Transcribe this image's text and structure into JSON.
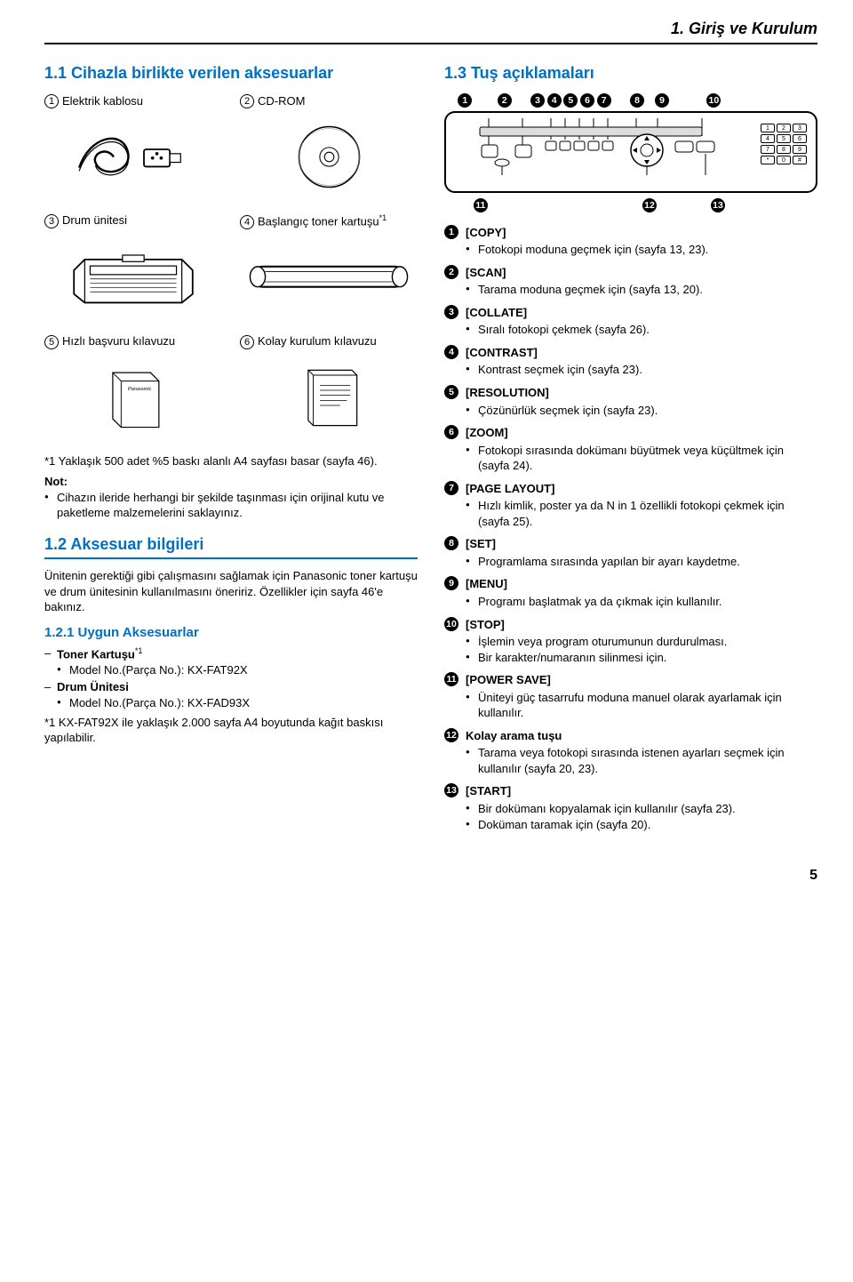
{
  "chapter_header": "1. Giriş ve Kurulum",
  "left": {
    "s1_title": "1.1 Cihazla birlikte verilen aksesuarlar",
    "items": {
      "i1_num": "1",
      "i1": "Elektrik kablosu",
      "i2_num": "2",
      "i2": "CD-ROM",
      "i3_num": "3",
      "i3": "Drum ünitesi",
      "i4_num": "4",
      "i4": "Başlangıç toner kartuşu",
      "i4_sup": "*1",
      "i5_num": "5",
      "i5": "Hızlı başvuru kılavuzu",
      "i6_num": "6",
      "i6": "Kolay kurulum kılavuzu"
    },
    "footnote1": "*1  Yaklaşık 500 adet %5 baskı alanlı A4 sayfası basar (sayfa 46).",
    "note_label": "Not:",
    "note_bullet": "Cihazın ileride herhangi bir şekilde taşınması için orijinal kutu ve paketleme malzemelerini saklayınız.",
    "s2_title": "1.2 Aksesuar bilgileri",
    "s2_para": "Ünitenin gerektiği gibi çalışmasını sağlamak için Panasonic toner kartuşu ve drum ünitesinin kullanılmasını öneririz. Özellikler için sayfa 46'e bakınız.",
    "s21_title": "1.2.1 Uygun Aksesuarlar",
    "acc_toner_label": "Toner Kartuşu",
    "acc_toner_sup": "*1",
    "acc_toner_model": "Model No.(Parça No.): KX-FAT92X",
    "acc_drum_label": "Drum Ünitesi",
    "acc_drum_model": "Model No.(Parça No.): KX-FAD93X",
    "footnote2": "*1  KX-FAT92X ile yaklaşık 2.000 sayfa A4 boyutunda kağıt baskısı yapılabilir."
  },
  "right": {
    "s3_title": "1.3 Tuş açıklamaları",
    "upper_nums": [
      "1",
      "2",
      "3",
      "4",
      "5",
      "6",
      "7",
      "8",
      "9",
      "10"
    ],
    "lower_nums": [
      "11",
      "12",
      "13"
    ],
    "keypad": [
      "1",
      "2",
      "3",
      "4",
      "5",
      "6",
      "7",
      "8",
      "9",
      "*",
      "0",
      "#"
    ],
    "keys": [
      {
        "n": "1",
        "name": "[COPY]",
        "lines": [
          "Fotokopi moduna geçmek için (sayfa 13, 23)."
        ]
      },
      {
        "n": "2",
        "name": "[SCAN]",
        "lines": [
          "Tarama moduna geçmek için (sayfa 13, 20)."
        ]
      },
      {
        "n": "3",
        "name": "[COLLATE]",
        "lines": [
          "Sıralı fotokopi çekmek (sayfa 26)."
        ]
      },
      {
        "n": "4",
        "name": "[CONTRAST]",
        "lines": [
          "Kontrast seçmek için (sayfa 23)."
        ]
      },
      {
        "n": "5",
        "name": "[RESOLUTION]",
        "lines": [
          "Çözünürlük seçmek için (sayfa 23)."
        ]
      },
      {
        "n": "6",
        "name": "[ZOOM]",
        "lines": [
          "Fotokopi sırasında dokümanı büyütmek veya küçültmek için (sayfa 24)."
        ]
      },
      {
        "n": "7",
        "name": "[PAGE LAYOUT]",
        "lines": [
          "Hızlı kimlik, poster ya da N in 1 özellikli fotokopi çekmek için (sayfa 25)."
        ]
      },
      {
        "n": "8",
        "name": "[SET]",
        "lines": [
          "Programlama sırasında yapılan bir ayarı kaydetme."
        ]
      },
      {
        "n": "9",
        "name": "[MENU]",
        "lines": [
          "Programı başlatmak ya da çıkmak için kullanılır."
        ]
      },
      {
        "n": "10",
        "name": "[STOP]",
        "lines": [
          "İşlemin veya program oturumunun durdurulması.",
          "Bir karakter/numaranın silinmesi için."
        ]
      },
      {
        "n": "11",
        "name": "[POWER SAVE]",
        "lines": [
          "Üniteyi güç tasarrufu moduna manuel olarak ayarlamak için kullanılır."
        ]
      },
      {
        "n": "12",
        "name": "Kolay arama tuşu",
        "lines": [
          "Tarama veya fotokopi sırasında istenen ayarları seçmek için kullanılır (sayfa 20, 23)."
        ]
      },
      {
        "n": "13",
        "name": "[START]",
        "lines": [
          "Bir dokümanı kopyalamak için kullanılır (sayfa 23).",
          "Doküman taramak için (sayfa 20)."
        ]
      }
    ]
  },
  "page_number": "5"
}
